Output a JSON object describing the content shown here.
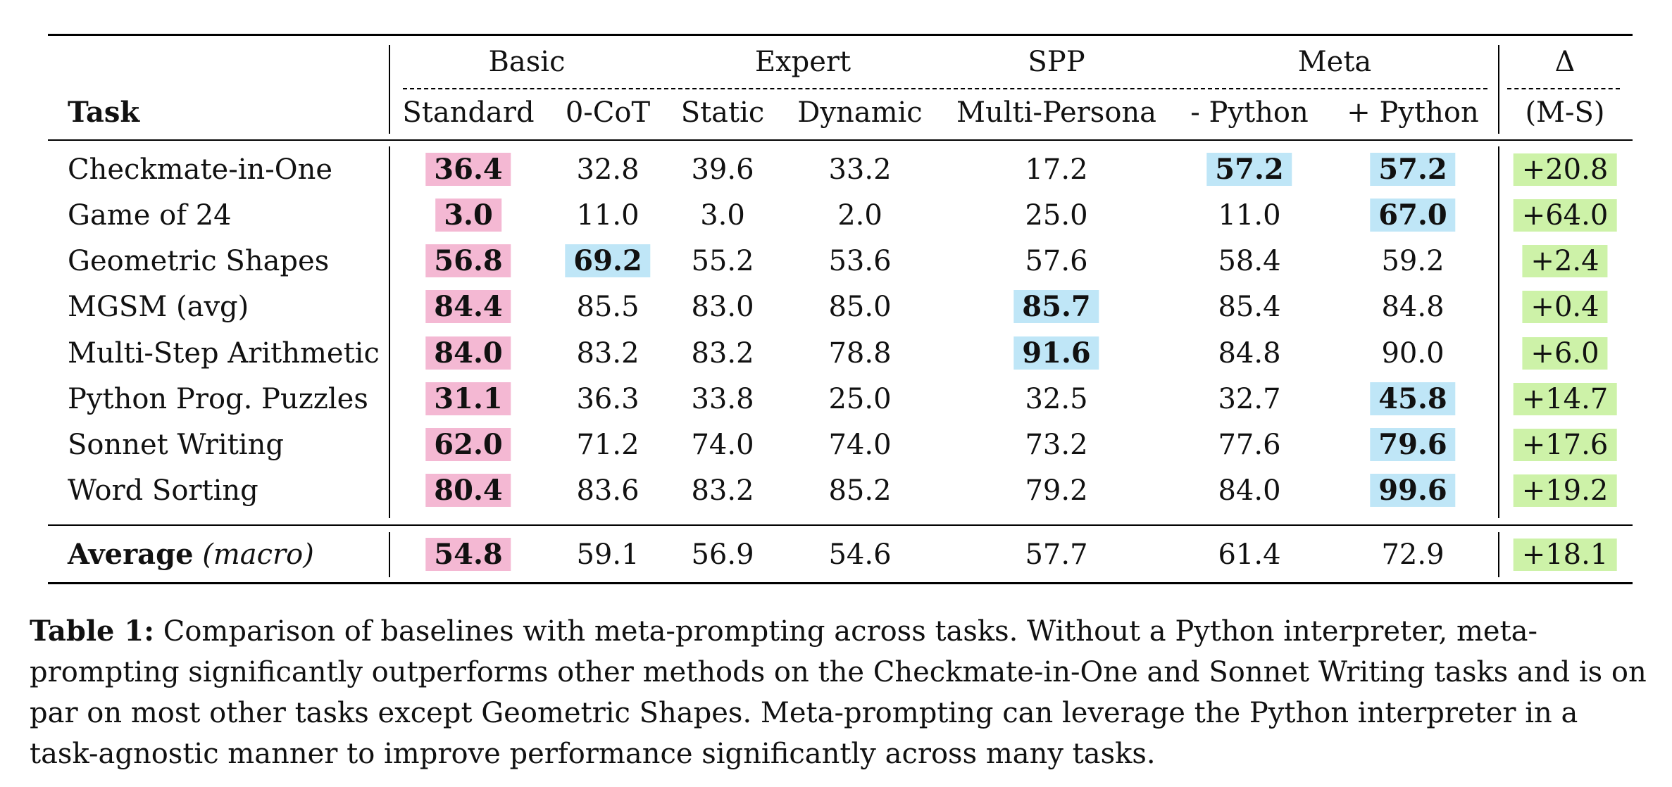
{
  "groups": [
    "Basic",
    "Expert",
    "SPP",
    "Meta"
  ],
  "delta_symbol": "Δ",
  "task_header": "Task",
  "columns": [
    "Standard",
    "0-CoT",
    "Static",
    "Dynamic",
    "Multi-Persona",
    "- Python",
    "+ Python",
    "(M-S)"
  ],
  "rows": [
    {
      "task": "Checkmate-in-One",
      "values": [
        "36.4",
        "32.8",
        "39.6",
        "33.2",
        "17.2",
        "57.2",
        "57.2",
        "+20.8"
      ]
    },
    {
      "task": "Game of 24",
      "values": [
        "3.0",
        "11.0",
        "3.0",
        "2.0",
        "25.0",
        "11.0",
        "67.0",
        "+64.0"
      ]
    },
    {
      "task": "Geometric Shapes",
      "values": [
        "56.8",
        "69.2",
        "55.2",
        "53.6",
        "57.6",
        "58.4",
        "59.2",
        "+2.4"
      ]
    },
    {
      "task": "MGSM (avg)",
      "values": [
        "84.4",
        "85.5",
        "83.0",
        "85.0",
        "85.7",
        "85.4",
        "84.8",
        "+0.4"
      ]
    },
    {
      "task": "Multi-Step Arithmetic",
      "values": [
        "84.0",
        "83.2",
        "83.2",
        "78.8",
        "91.6",
        "84.8",
        "90.0",
        "+6.0"
      ]
    },
    {
      "task": "Python Prog. Puzzles",
      "values": [
        "31.1",
        "36.3",
        "33.8",
        "25.0",
        "32.5",
        "32.7",
        "45.8",
        "+14.7"
      ]
    },
    {
      "task": "Sonnet Writing",
      "values": [
        "62.0",
        "71.2",
        "74.0",
        "74.0",
        "73.2",
        "77.6",
        "79.6",
        "+17.6"
      ]
    },
    {
      "task": "Word Sorting",
      "values": [
        "80.4",
        "83.6",
        "83.2",
        "85.2",
        "79.2",
        "84.0",
        "99.6",
        "+19.2"
      ]
    }
  ],
  "average": {
    "label": "Average",
    "label_italic": "(macro)",
    "values": [
      "54.8",
      "59.1",
      "56.9",
      "54.6",
      "57.7",
      "61.4",
      "72.9",
      "+18.1"
    ]
  },
  "caption": {
    "label": "Table 1:",
    "text": "Comparison of baselines with meta-prompting across tasks. Without a Python interpreter, meta-prompting significantly outperforms other methods on the Checkmate-in-One and Sonnet Writing tasks and is on par on most other tasks except Geometric Shapes. Meta-prompting can leverage the Python interpreter in a task-agnostic manner to improve performance significantly across many tasks."
  },
  "colors": {
    "pink": "#f4b8d3",
    "blue": "#bfe6f7",
    "green": "#cdf2a8"
  },
  "highlights": {
    "pink": [
      [
        0,
        0
      ],
      [
        1,
        0
      ],
      [
        2,
        0
      ],
      [
        3,
        0
      ],
      [
        4,
        0
      ],
      [
        5,
        0
      ],
      [
        6,
        0
      ],
      [
        7,
        0
      ],
      [
        "avg",
        0
      ]
    ],
    "blue": [
      [
        0,
        5
      ],
      [
        0,
        6
      ],
      [
        1,
        6
      ],
      [
        2,
        1
      ],
      [
        3,
        4
      ],
      [
        4,
        4
      ],
      [
        5,
        6
      ],
      [
        6,
        6
      ],
      [
        7,
        6
      ]
    ],
    "green_column": 7
  }
}
